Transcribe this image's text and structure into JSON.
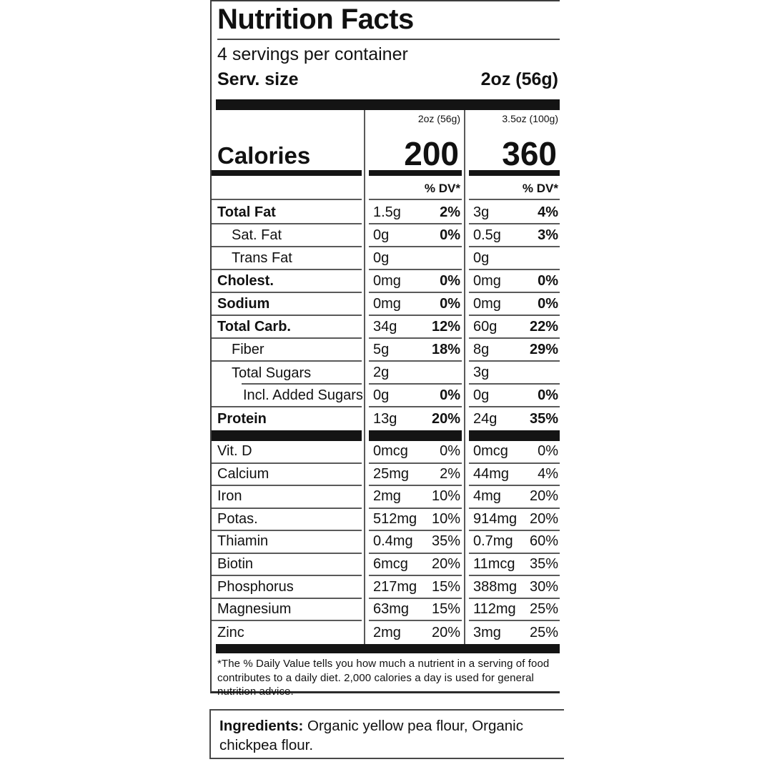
{
  "label": {
    "title": "Nutrition Facts",
    "servings_per_container": "4 servings per container",
    "serv_size_label": "Serv. size",
    "serv_size_value": "2oz (56g)",
    "col_headers": [
      "2oz (56g)",
      "3.5oz (100g)"
    ],
    "calories_label": "Calories",
    "calories": [
      "200",
      "360"
    ],
    "dv_header": "% DV*",
    "main_rows": [
      {
        "label": "Total Fat",
        "bold": true,
        "indent": 0,
        "cols": [
          [
            "1.5g",
            "2%"
          ],
          [
            "3g",
            "4%"
          ]
        ]
      },
      {
        "label": "Sat. Fat",
        "bold": false,
        "indent": 1,
        "cols": [
          [
            "0g",
            "0%"
          ],
          [
            "0.5g",
            "3%"
          ]
        ]
      },
      {
        "label": "Trans Fat",
        "bold": false,
        "indent": 1,
        "cols": [
          [
            "0g",
            ""
          ],
          [
            "0g",
            ""
          ]
        ]
      },
      {
        "label": "Cholest.",
        "bold": true,
        "indent": 0,
        "cols": [
          [
            "0mg",
            "0%"
          ],
          [
            "0mg",
            "0%"
          ]
        ]
      },
      {
        "label": "Sodium",
        "bold": true,
        "indent": 0,
        "cols": [
          [
            "0mg",
            "0%"
          ],
          [
            "0mg",
            "0%"
          ]
        ]
      },
      {
        "label": "Total Carb.",
        "bold": true,
        "indent": 0,
        "cols": [
          [
            "34g",
            "12%"
          ],
          [
            "60g",
            "22%"
          ]
        ]
      },
      {
        "label": "Fiber",
        "bold": false,
        "indent": 1,
        "cols": [
          [
            "5g",
            "18%"
          ],
          [
            "8g",
            "29%"
          ]
        ]
      },
      {
        "label": "Total Sugars",
        "bold": false,
        "indent": 1,
        "cols": [
          [
            "2g",
            ""
          ],
          [
            "3g",
            ""
          ]
        ],
        "sub_rule": true
      },
      {
        "label": "Incl. Added Sugars",
        "bold": false,
        "indent": 2,
        "cols": [
          [
            "0g",
            "0%"
          ],
          [
            "0g",
            "0%"
          ]
        ]
      },
      {
        "label": "Protein",
        "bold": true,
        "indent": 0,
        "cols": [
          [
            "13g",
            "20%"
          ],
          [
            "24g",
            "35%"
          ]
        ],
        "last": true
      }
    ],
    "vitamin_rows": [
      {
        "label": "Vit. D",
        "cols": [
          [
            "0mcg",
            "0%"
          ],
          [
            "0mcg",
            "0%"
          ]
        ]
      },
      {
        "label": "Calcium",
        "cols": [
          [
            "25mg",
            "2%"
          ],
          [
            "44mg",
            "4%"
          ]
        ]
      },
      {
        "label": "Iron",
        "cols": [
          [
            "2mg",
            "10%"
          ],
          [
            "4mg",
            "20%"
          ]
        ]
      },
      {
        "label": "Potas.",
        "cols": [
          [
            "512mg",
            "10%"
          ],
          [
            "914mg",
            "20%"
          ]
        ]
      },
      {
        "label": "Thiamin",
        "cols": [
          [
            "0.4mg",
            "35%"
          ],
          [
            "0.7mg",
            "60%"
          ]
        ]
      },
      {
        "label": "Biotin",
        "cols": [
          [
            "6mcg",
            "20%"
          ],
          [
            "11mcg",
            "35%"
          ]
        ]
      },
      {
        "label": "Phosphorus",
        "cols": [
          [
            "217mg",
            "15%"
          ],
          [
            "388mg",
            "30%"
          ]
        ]
      },
      {
        "label": "Magnesium",
        "cols": [
          [
            "63mg",
            "15%"
          ],
          [
            "112mg",
            "25%"
          ]
        ]
      },
      {
        "label": "Zinc",
        "cols": [
          [
            "2mg",
            "20%"
          ],
          [
            "3mg",
            "25%"
          ]
        ],
        "last": true
      }
    ],
    "footnote": "*The % Daily Value tells you how much a nutrient in a serving of food contributes to a daily diet. 2,000 calories a day is used for general nutrition advice."
  },
  "ingredients": {
    "label": "Ingredients:",
    "text": "Organic yellow pea flour, Organic chickpea flour."
  },
  "colors": {
    "text": "#111111",
    "hairline": "#5a5a5a",
    "bar": "#141414",
    "border": "#3d3d3d",
    "background": "#ffffff"
  }
}
